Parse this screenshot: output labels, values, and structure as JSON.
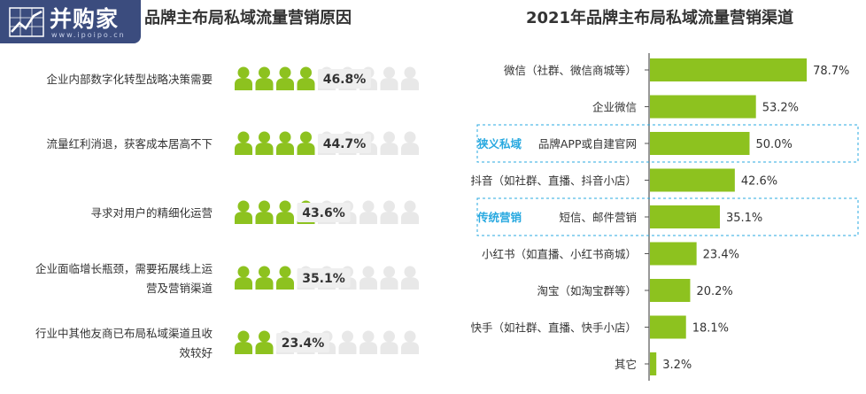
{
  "brand": {
    "name": "并购家",
    "url": "www.ipoipo.cn"
  },
  "chart_data": [
    {
      "type": "bar",
      "title": "品牌主布局私域流量营销原因",
      "categories": [
        "企业内部数字化转型战略决策需要",
        "流量红利消退，获客成本居高不下",
        "寻求对用户的精细化运营",
        "企业面临增长瓶颈，需要拓展线上运营及营销渠道",
        "行业中其他友商已布局私域渠道且收效较好"
      ],
      "category_lines": [
        [
          "企业内部数字化转型战略决策需要"
        ],
        [
          "流量红利消退，获客成本居高不下"
        ],
        [
          "寻求对用户的精细化运营"
        ],
        [
          "企业面临增长瓶颈，需要拓展线上运",
          "营及营销渠道"
        ],
        [
          "行业中其他友商已布局私域渠道且收",
          "效较好"
        ]
      ],
      "values": [
        46.8,
        44.7,
        43.6,
        35.1,
        23.4
      ],
      "value_labels": [
        "46.8%",
        "44.7%",
        "43.6%",
        "35.1%",
        "23.4%"
      ],
      "unit": "%",
      "xlim": [
        0,
        100
      ],
      "colors": {
        "filled": "#8dc21f",
        "empty": "#e8e8e8",
        "value_bg": "#efefef"
      }
    },
    {
      "type": "bar",
      "title": "2021年品牌主布局私域流量营销渠道",
      "categories": [
        "微信（社群、微信商城等）",
        "企业微信",
        "品牌APP或自建官网",
        "抖音（如社群、直播、抖音小店）",
        "短信、邮件营销",
        "小红书（如直播、小红书商城）",
        "淘宝（如淘宝群等）",
        "快手（如社群、直播、快手小店）",
        "其它"
      ],
      "values": [
        78.7,
        53.2,
        50.0,
        42.6,
        35.1,
        23.4,
        20.2,
        18.1,
        3.2
      ],
      "value_labels": [
        "78.7%",
        "53.2%",
        "50.0%",
        "42.6%",
        "35.1%",
        "23.4%",
        "20.2%",
        "18.1%",
        "3.2%"
      ],
      "unit": "%",
      "xlim": [
        0,
        100
      ],
      "annotations": [
        {
          "text": "狭义私域",
          "category": "品牌APP或自建官网"
        },
        {
          "text": "传统营销",
          "category": "短信、邮件营销"
        }
      ],
      "colors": {
        "bar": "#8dc21f",
        "annotation": "#29a9e0",
        "axis": "#555555"
      }
    }
  ]
}
